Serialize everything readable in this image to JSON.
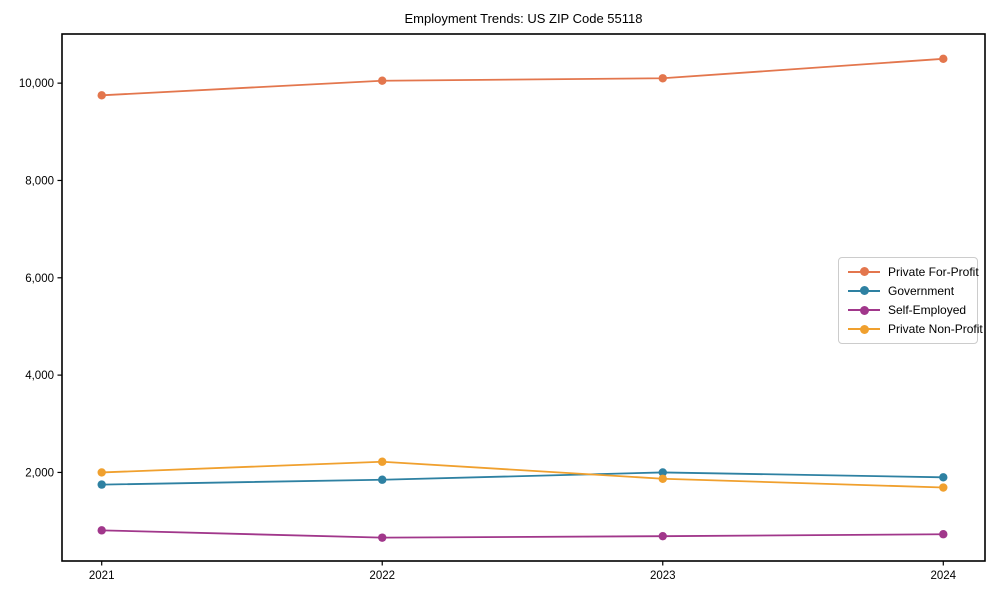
{
  "chart_data": {
    "type": "line",
    "title": "Employment Trends: US ZIP Code 55118",
    "categories": [
      "2021",
      "2022",
      "2023",
      "2024"
    ],
    "series": [
      {
        "name": "Private For-Profit",
        "color": "#E3764D",
        "values": [
          9750,
          10050,
          10100,
          10500
        ]
      },
      {
        "name": "Government",
        "color": "#2E81A2",
        "values": [
          1750,
          1850,
          2000,
          1900
        ]
      },
      {
        "name": "Self-Employed",
        "color": "#A1378B",
        "values": [
          810,
          660,
          690,
          730
        ]
      },
      {
        "name": "Private Non-Profit",
        "color": "#F0A02E",
        "values": [
          2000,
          2220,
          1870,
          1690
        ]
      }
    ],
    "xlabel": "",
    "ylabel": "",
    "ylim": [
      180,
      11010
    ],
    "yticks": [
      2000,
      4000,
      6000,
      8000,
      10000
    ],
    "ytick_labels": [
      "2,000",
      "4,000",
      "6,000",
      "8,000",
      "10,000"
    ],
    "grid": false,
    "legend_position": "center-right",
    "marker": "circle",
    "axis_color": "#000000",
    "background_color": "#ffffff"
  }
}
